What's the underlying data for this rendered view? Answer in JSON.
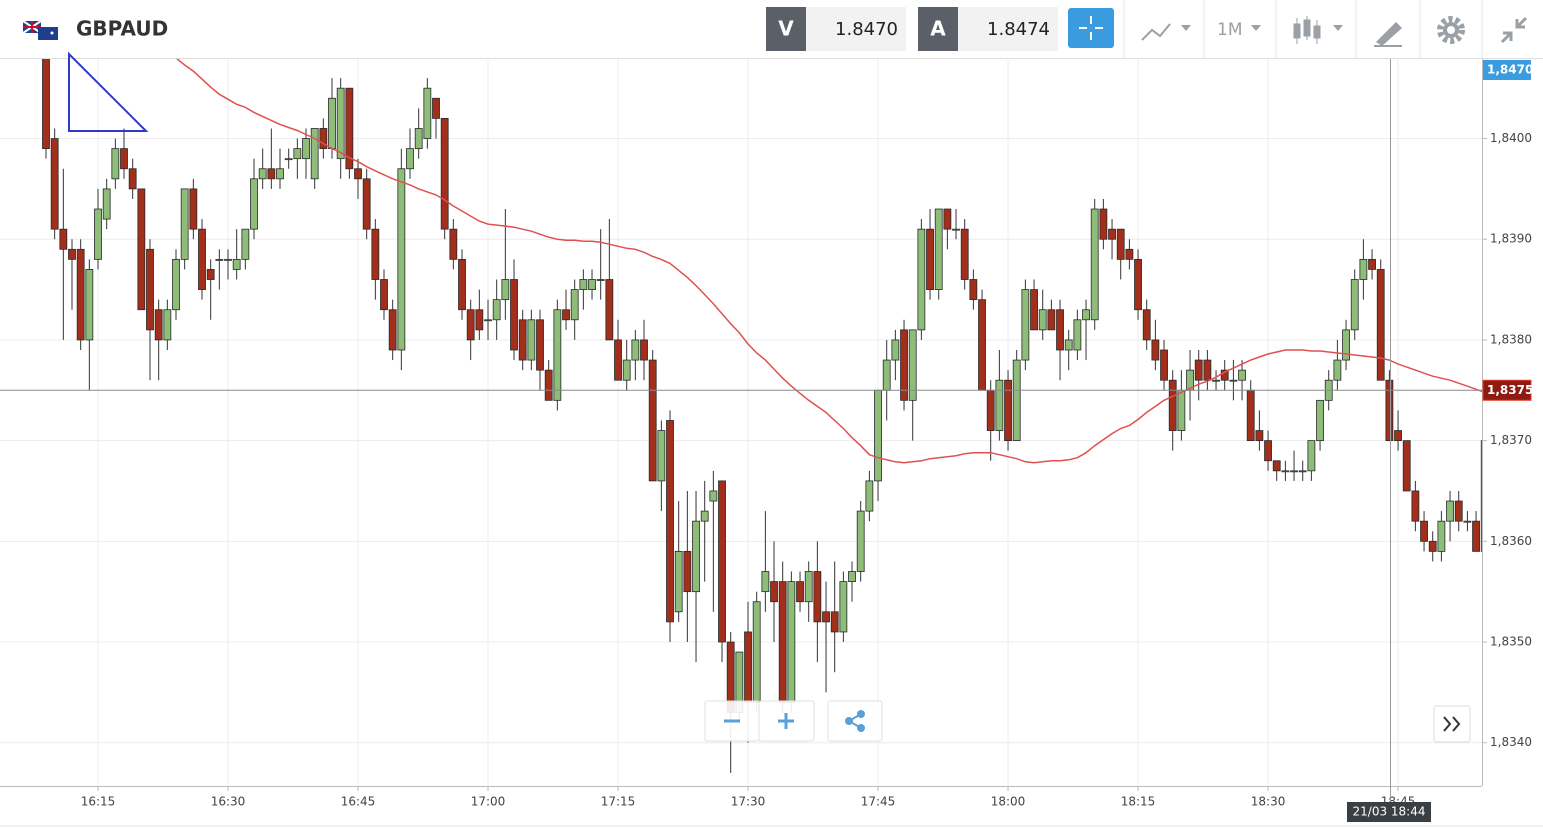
{
  "chart_data": {
    "type": "candlestick",
    "title": "GBPAUD",
    "bid_label": "V",
    "bid": "1.8470",
    "ask_label": "A",
    "ask": "1.8474",
    "timeframe": "1M",
    "top_tag": "1,8470",
    "price_tag": {
      "value": 1.8375,
      "label": "1,8375"
    },
    "crosshair_label": "21/03 18:44",
    "up_color": "#8ebd7a",
    "down_color": "#a12f1c",
    "ylim": [
      1.83357,
      1.84078
    ],
    "yticks": [
      {
        "value": 1.834,
        "label": "1,8340"
      },
      {
        "value": 1.835,
        "label": "1,8350"
      },
      {
        "value": 1.836,
        "label": "1,8360"
      },
      {
        "value": 1.837,
        "label": "1,8370"
      },
      {
        "value": 1.838,
        "label": "1,8380"
      },
      {
        "value": 1.839,
        "label": "1,8390"
      },
      {
        "value": 1.84,
        "label": "1,8400"
      }
    ],
    "grid": true,
    "categories": [
      null,
      null,
      null,
      null,
      null,
      null,
      "16:15",
      null,
      null,
      null,
      null,
      null,
      null,
      null,
      null,
      null,
      null,
      null,
      null,
      null,
      null,
      "16:30",
      null,
      null,
      null,
      null,
      null,
      null,
      null,
      null,
      null,
      null,
      null,
      null,
      null,
      null,
      "16:45",
      null,
      null,
      null,
      null,
      null,
      null,
      null,
      null,
      null,
      null,
      null,
      null,
      null,
      null,
      "17:00",
      null,
      null,
      null,
      null,
      null,
      null,
      null,
      null,
      null,
      null,
      null,
      null,
      null,
      null,
      "17:15",
      null,
      null,
      null,
      null,
      null,
      null,
      null,
      null,
      null,
      null,
      null,
      null,
      null,
      null,
      "17:30",
      null,
      null,
      null,
      null,
      null,
      null,
      null,
      null,
      null,
      null,
      null,
      null,
      null,
      null,
      "17:45",
      null,
      null,
      null,
      null,
      null,
      null,
      null,
      null,
      null,
      null,
      null,
      null,
      null,
      null,
      "18:00",
      null,
      null,
      null,
      null,
      null,
      null,
      null,
      null,
      null,
      null,
      null,
      null,
      null,
      null,
      "18:15",
      null,
      null,
      null,
      null,
      null,
      null,
      null,
      null,
      null,
      null,
      null,
      null,
      null,
      null,
      "18:30",
      null,
      null,
      null,
      null,
      null,
      null,
      null,
      null,
      null,
      null,
      null,
      null,
      null,
      null,
      "18:45",
      null,
      null,
      null,
      null,
      null,
      null,
      null,
      null,
      null,
      null
    ],
    "open": [
      1.8408,
      1.84,
      1.8391,
      1.8389,
      1.8389,
      1.838,
      1.8388,
      1.8392,
      1.8396,
      1.8399,
      1.8397,
      1.8395,
      1.8389,
      1.8383,
      1.838,
      1.8383,
      1.8388,
      1.8395,
      1.8391,
      1.8387,
      1.8388,
      1.8388,
      1.8387,
      1.8388,
      1.8391,
      1.8396,
      1.8397,
      1.8396,
      1.8398,
      1.8398,
      1.8398,
      1.8396,
      1.8401,
      1.8399,
      1.8398,
      1.8405,
      1.8397,
      1.8396,
      1.8391,
      1.8386,
      1.8383,
      1.8379,
      1.8397,
      1.8399,
      1.84,
      1.8404,
      1.8402,
      1.8391,
      1.8388,
      1.8383,
      1.8383,
      1.8382,
      1.8382,
      1.8384,
      1.8386,
      1.8382,
      1.8378,
      1.8382,
      1.8377,
      1.8374,
      1.8383,
      1.8382,
      1.8385,
      1.8385,
      1.8386,
      1.8386,
      1.838,
      1.8376,
      1.8378,
      1.838,
      1.8378,
      1.8366,
      1.8372,
      1.8353,
      1.8359,
      1.8355,
      1.8362,
      1.8364,
      1.8366,
      1.835,
      1.8343,
      1.8351,
      1.8344,
      1.8355,
      1.8356,
      1.8356,
      1.8344,
      1.8356,
      1.8354,
      1.8357,
      1.8353,
      1.8353,
      1.8351,
      1.8356,
      1.8357,
      1.8363,
      1.8366,
      1.8375,
      1.8378,
      1.8381,
      1.8374,
      1.8381,
      1.8391,
      1.8385,
      1.8393,
      1.8391,
      1.8391,
      1.8386,
      1.8384,
      1.8375,
      1.8371,
      1.8376,
      1.837,
      1.8378,
      1.8385,
      1.8381,
      1.8383,
      1.8383,
      1.8379,
      1.8379,
      1.8382,
      1.8382,
      1.8393,
      1.8391,
      1.8391,
      1.8389,
      1.8388,
      1.8383,
      1.838,
      1.8379,
      1.8376,
      1.8371,
      1.8375,
      1.8378,
      1.8378,
      1.8376,
      1.8377,
      1.8376,
      1.8376,
      1.8375,
      1.8371,
      1.837,
      1.8368,
      1.8367,
      1.8367,
      1.8367,
      1.8367,
      1.837,
      1.8374,
      1.8376,
      1.8378,
      1.8381,
      1.8386,
      1.8388,
      1.8387,
      1.8376,
      1.8371,
      1.837,
      1.8365,
      1.8362,
      1.836,
      1.8359,
      1.8362,
      1.8364,
      1.8362,
      1.8362,
      1.8359
    ],
    "high": [
      1.8409,
      1.8401,
      1.8397,
      1.839,
      1.839,
      1.8388,
      1.8395,
      1.8396,
      1.84,
      1.8401,
      1.8398,
      1.8395,
      1.839,
      1.8384,
      1.8384,
      1.8389,
      1.8395,
      1.8396,
      1.8392,
      1.8388,
      1.8389,
      1.8389,
      1.8391,
      1.8391,
      1.8398,
      1.8399,
      1.8401,
      1.8399,
      1.8399,
      1.84,
      1.8401,
      1.8401,
      1.8402,
      1.8406,
      1.8406,
      1.8405,
      1.8398,
      1.8397,
      1.8392,
      1.8387,
      1.8384,
      1.8399,
      1.8401,
      1.8403,
      1.8406,
      1.8404,
      1.8402,
      1.8392,
      1.8389,
      1.8384,
      1.8385,
      1.8384,
      1.8386,
      1.8393,
      1.8388,
      1.8383,
      1.8383,
      1.8383,
      1.8378,
      1.8384,
      1.8385,
      1.8386,
      1.8387,
      1.8387,
      1.8391,
      1.8392,
      1.8382,
      1.838,
      1.8381,
      1.8382,
      1.8379,
      1.8372,
      1.8373,
      1.8364,
      1.8365,
      1.8365,
      1.8366,
      1.8367,
      1.8366,
      1.8351,
      1.8349,
      1.8354,
      1.8355,
      1.8363,
      1.836,
      1.8358,
      1.8357,
      1.8357,
      1.8358,
      1.836,
      1.8356,
      1.8358,
      1.8357,
      1.8358,
      1.8364,
      1.8367,
      1.8375,
      1.838,
      1.8381,
      1.8382,
      1.8381,
      1.8392,
      1.8393,
      1.8393,
      1.8393,
      1.8393,
      1.8392,
      1.8387,
      1.8385,
      1.8376,
      1.8379,
      1.8377,
      1.8379,
      1.8386,
      1.8386,
      1.8385,
      1.8384,
      1.8384,
      1.8381,
      1.8383,
      1.8384,
      1.8394,
      1.8394,
      1.8392,
      1.8391,
      1.839,
      1.8389,
      1.8384,
      1.8382,
      1.838,
      1.8377,
      1.8377,
      1.8379,
      1.8379,
      1.8379,
      1.8377,
      1.8378,
      1.8378,
      1.8378,
      1.8376,
      1.8373,
      1.8371,
      1.8368,
      1.8368,
      1.8369,
      1.8368,
      1.837,
      1.8374,
      1.8377,
      1.838,
      1.8382,
      1.8387,
      1.839,
      1.8389,
      1.8388,
      1.8377,
      1.8373,
      1.837,
      1.8366,
      1.8363,
      1.8361,
      1.8363,
      1.8365,
      1.8365,
      1.8363,
      1.8363,
      1.837
    ],
    "low": [
      1.8398,
      1.839,
      1.838,
      1.8383,
      1.8379,
      1.8375,
      1.8387,
      1.8391,
      1.8395,
      1.8396,
      1.8394,
      1.8383,
      1.8376,
      1.8376,
      1.8379,
      1.8382,
      1.8387,
      1.839,
      1.8384,
      1.8382,
      1.8385,
      1.8386,
      1.8386,
      1.8387,
      1.839,
      1.8395,
      1.8395,
      1.8395,
      1.8397,
      1.8396,
      1.8396,
      1.8395,
      1.8398,
      1.8398,
      1.8396,
      1.8396,
      1.8394,
      1.839,
      1.8384,
      1.8382,
      1.8378,
      1.8377,
      1.8396,
      1.8398,
      1.8399,
      1.84,
      1.839,
      1.8387,
      1.8382,
      1.8378,
      1.838,
      1.838,
      1.838,
      1.8382,
      1.8378,
      1.8377,
      1.8377,
      1.8375,
      1.8374,
      1.8373,
      1.8381,
      1.838,
      1.8383,
      1.8384,
      1.8384,
      1.838,
      1.8376,
      1.8375,
      1.8376,
      1.8376,
      1.8366,
      1.8363,
      1.835,
      1.8352,
      1.835,
      1.8348,
      1.8356,
      1.8353,
      1.8348,
      1.8337,
      1.8342,
      1.834,
      1.8343,
      1.8353,
      1.835,
      1.8343,
      1.8343,
      1.8353,
      1.8352,
      1.8348,
      1.8345,
      1.8347,
      1.835,
      1.8354,
      1.8356,
      1.8362,
      1.8364,
      1.8372,
      1.8376,
      1.8373,
      1.837,
      1.838,
      1.8384,
      1.8384,
      1.8389,
      1.839,
      1.8385,
      1.8383,
      1.8375,
      1.8368,
      1.837,
      1.8369,
      1.837,
      1.8377,
      1.8381,
      1.838,
      1.8381,
      1.8376,
      1.8377,
      1.8378,
      1.8378,
      1.8381,
      1.8389,
      1.8388,
      1.8386,
      1.8387,
      1.8382,
      1.8379,
      1.8377,
      1.8375,
      1.8369,
      1.837,
      1.8372,
      1.8374,
      1.8375,
      1.8375,
      1.8375,
      1.8374,
      1.8374,
      1.837,
      1.8369,
      1.8367,
      1.8366,
      1.8366,
      1.8366,
      1.8366,
      1.8366,
      1.8369,
      1.8373,
      1.8375,
      1.8377,
      1.838,
      1.8384,
      1.8386,
      1.8376,
      1.837,
      1.8369,
      1.8365,
      1.8361,
      1.8359,
      1.8358,
      1.8358,
      1.836,
      1.8361,
      1.8361,
      1.8359,
      1.8359
    ],
    "close": [
      1.8399,
      1.8391,
      1.8389,
      1.8388,
      1.838,
      1.8387,
      1.8393,
      1.8395,
      1.8399,
      1.8397,
      1.8395,
      1.8383,
      1.8381,
      1.838,
      1.8383,
      1.8388,
      1.8395,
      1.8391,
      1.8385,
      1.8386,
      1.8388,
      1.8388,
      1.8388,
      1.8391,
      1.8396,
      1.8397,
      1.8396,
      1.8397,
      1.8398,
      1.8399,
      1.84,
      1.8401,
      1.8399,
      1.8404,
      1.8405,
      1.8397,
      1.8396,
      1.8391,
      1.8386,
      1.8383,
      1.8379,
      1.8397,
      1.8399,
      1.8401,
      1.8405,
      1.8402,
      1.8391,
      1.8388,
      1.8383,
      1.838,
      1.8381,
      1.8382,
      1.8384,
      1.8386,
      1.8379,
      1.8378,
      1.8382,
      1.8377,
      1.8374,
      1.8383,
      1.8382,
      1.8385,
      1.8386,
      1.8386,
      1.8386,
      1.838,
      1.8376,
      1.8378,
      1.838,
      1.8378,
      1.8366,
      1.8371,
      1.8352,
      1.8359,
      1.8355,
      1.8362,
      1.8363,
      1.8365,
      1.835,
      1.8343,
      1.8349,
      1.8344,
      1.8354,
      1.8357,
      1.8354,
      1.8344,
      1.8356,
      1.8354,
      1.8357,
      1.8352,
      1.8352,
      1.8351,
      1.8356,
      1.8357,
      1.8363,
      1.8366,
      1.8375,
      1.8378,
      1.838,
      1.8374,
      1.8381,
      1.8391,
      1.8385,
      1.8393,
      1.8391,
      1.8391,
      1.8386,
      1.8384,
      1.8375,
      1.8371,
      1.8376,
      1.837,
      1.8378,
      1.8385,
      1.8381,
      1.8383,
      1.8381,
      1.8379,
      1.838,
      1.8382,
      1.8383,
      1.8393,
      1.839,
      1.839,
      1.8388,
      1.8388,
      1.8383,
      1.838,
      1.8378,
      1.8376,
      1.8371,
      1.8375,
      1.8377,
      1.8376,
      1.8376,
      1.8376,
      1.8376,
      1.8376,
      1.8377,
      1.837,
      1.837,
      1.8368,
      1.8367,
      1.8367,
      1.8367,
      1.8367,
      1.837,
      1.8374,
      1.8376,
      1.8378,
      1.8381,
      1.8386,
      1.8388,
      1.8387,
      1.8376,
      1.837,
      1.837,
      1.8365,
      1.8362,
      1.836,
      1.8359,
      1.8362,
      1.8364,
      1.8362,
      1.8362,
      1.8359,
      1.837
    ],
    "series": [
      {
        "color": "#e05050",
        "values": [
          null,
          null,
          null,
          null,
          null,
          null,
          null,
          null,
          null,
          null,
          null,
          null,
          null,
          null,
          null,
          1.8408,
          1.84073,
          1.84067,
          1.84059,
          1.84051,
          1.84044,
          1.84039,
          1.84034,
          1.84031,
          1.84026,
          1.84022,
          1.84018,
          1.84014,
          1.84011,
          1.84008,
          1.84004,
          1.84,
          1.83995,
          1.8399,
          1.83986,
          1.83981,
          1.83977,
          1.83972,
          1.83968,
          1.83964,
          1.8396,
          1.83957,
          1.83954,
          1.8395,
          1.83947,
          1.83944,
          1.83939,
          1.83933,
          1.83928,
          1.83923,
          1.83918,
          1.83915,
          1.83914,
          1.83913,
          1.83912,
          1.8391,
          1.83908,
          1.83905,
          1.83902,
          1.839,
          1.83899,
          1.83899,
          1.83898,
          1.83898,
          1.83897,
          1.83895,
          1.83893,
          1.83891,
          1.8389,
          1.83887,
          1.83883,
          1.8388,
          1.83876,
          1.83869,
          1.83862,
          1.83854,
          1.83845,
          1.83836,
          1.83826,
          1.83816,
          1.83807,
          1.83796,
          1.83787,
          1.8378,
          1.83771,
          1.83762,
          1.83754,
          1.83747,
          1.8374,
          1.83734,
          1.83728,
          1.8372,
          1.83712,
          1.83703,
          1.83695,
          1.83686,
          1.83683,
          1.83681,
          1.83679,
          1.83678,
          1.83679,
          1.8368,
          1.83682,
          1.83683,
          1.83684,
          1.83685,
          1.83687,
          1.83688,
          1.83688,
          1.83688,
          1.83686,
          1.83684,
          1.83682,
          1.83679,
          1.83678,
          1.83679,
          1.8368,
          1.8368,
          1.83681,
          1.83683,
          1.83688,
          1.83695,
          1.83701,
          1.83707,
          1.83712,
          1.83715,
          1.83721,
          1.83728,
          1.83734,
          1.8374,
          1.83744,
          1.83748,
          1.83752,
          1.83756,
          1.83759,
          1.83763,
          1.83768,
          1.83772,
          1.83776,
          1.8378,
          1.83783,
          1.83786,
          1.83788,
          1.8379,
          1.8379,
          1.8379,
          1.83789,
          1.83789,
          1.83788,
          1.83787,
          1.83786,
          1.83785,
          1.83784,
          1.83783,
          1.83782,
          1.8378,
          1.83776,
          1.83773,
          1.8377,
          1.83767,
          1.83764,
          1.83762,
          1.8376,
          1.83757,
          1.83754,
          1.83751,
          1.83748
        ]
      }
    ]
  }
}
